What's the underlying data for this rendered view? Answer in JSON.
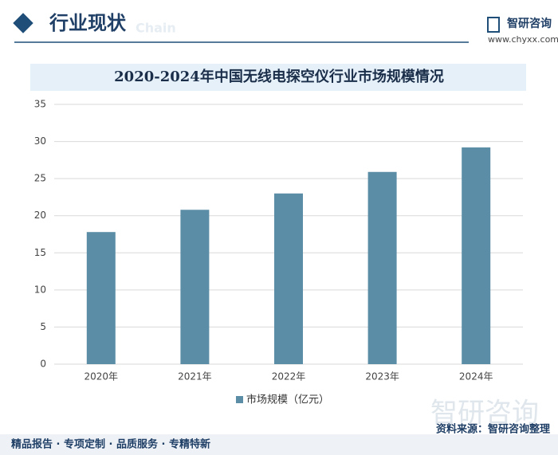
{
  "header": {
    "section": "行业现状",
    "watermark": "Chain",
    "logo": "智研咨询",
    "url": "www.chyxx.com"
  },
  "chart_data": {
    "type": "bar",
    "title": "2020-2024年中国无线电探空仪行业市场规模情况",
    "categories": [
      "2020年",
      "2021年",
      "2022年",
      "2023年",
      "2024年"
    ],
    "series": [
      {
        "name": "市场规模（亿元）",
        "color": "#5b8ea6",
        "values": [
          17.8,
          20.8,
          23.0,
          25.9,
          29.2
        ]
      }
    ],
    "ylim": [
      0,
      35
    ],
    "yticks": [
      0,
      5,
      10,
      15,
      20,
      25,
      30,
      35
    ],
    "grid": true
  },
  "footer": {
    "slogan": "精品报告 · 专项定制 · 品质服务 · 专精特新",
    "source": "资料来源：智研咨询整理",
    "brand": "智研咨询"
  }
}
